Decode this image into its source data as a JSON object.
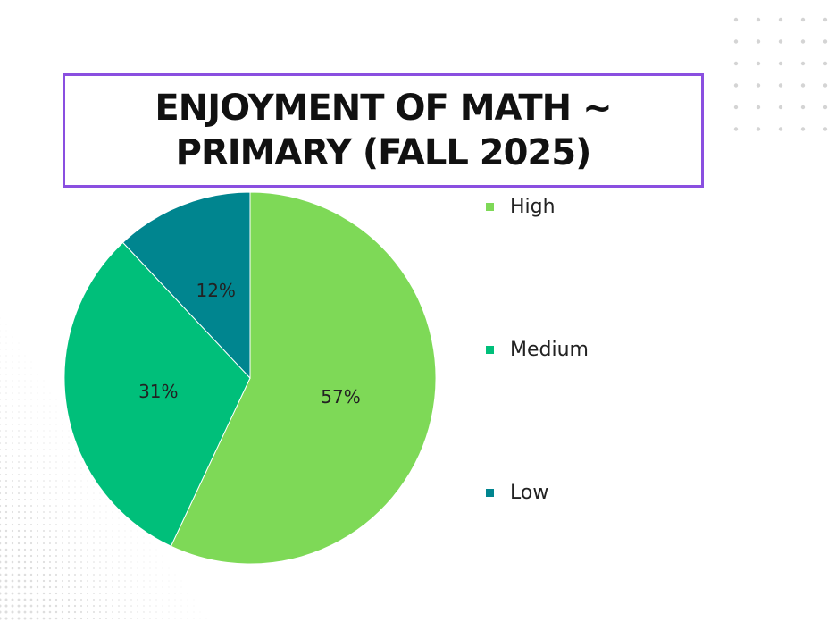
{
  "title": {
    "line1": "ENJOYMENT OF MATH ~",
    "line2": "PRIMARY (FALL 2025)"
  },
  "colors": {
    "title_border": "#8a4fe0",
    "high": "#7ed957",
    "medium": "#00bf7a",
    "low": "#00858f"
  },
  "chart_data": {
    "type": "pie",
    "slices": [
      {
        "label": "High",
        "value": 57,
        "display": "57%",
        "color": "#7ed957"
      },
      {
        "label": "Medium",
        "value": 31,
        "display": "31%",
        "color": "#00bf7a"
      },
      {
        "label": "Low",
        "value": 12,
        "display": "12%",
        "color": "#00858f"
      }
    ],
    "start_angle": "12 o'clock",
    "direction": "clockwise",
    "legend_position": "right"
  }
}
